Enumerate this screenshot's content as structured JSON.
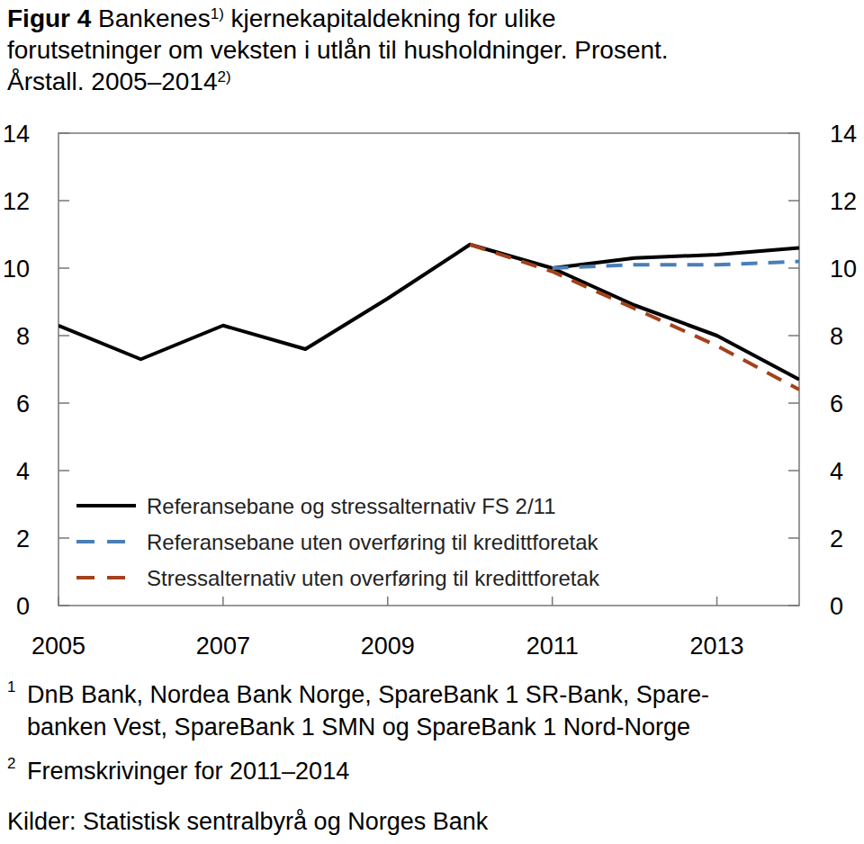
{
  "chart_data": {
    "type": "line",
    "title": [
      "Figur 4",
      " Bankenes",
      "1)",
      " kjernekapitaldekning for ulike",
      "forutsetninger om veksten i utlån til husholdninger. Prosent.",
      "Årstall. 2005–2014",
      "2)"
    ],
    "x": [
      2005,
      2006,
      2007,
      2008,
      2009,
      2010,
      2011,
      2012,
      2013,
      2014
    ],
    "xlim": [
      2005,
      2014
    ],
    "xticks": [
      2005,
      2007,
      2009,
      2011,
      2013
    ],
    "ylim": [
      0,
      14
    ],
    "yticks": [
      0,
      2,
      4,
      6,
      8,
      10,
      12,
      14
    ],
    "y2lim": [
      0,
      14
    ],
    "y2ticks": [
      0,
      2,
      4,
      6,
      8,
      10,
      12,
      14
    ],
    "grid": false,
    "legend": "lower left",
    "series": [
      {
        "name": "Referansebane og stressalternativ FS 2/11",
        "color": "#000000",
        "line_style": "solid",
        "values": [
          8.3,
          7.3,
          8.3,
          7.6,
          9.1,
          10.7,
          10.0,
          8.9,
          8.0,
          6.7
        ]
      },
      {
        "name": null,
        "color": "#000000",
        "line_style": "solid",
        "values": [
          null,
          null,
          null,
          null,
          null,
          null,
          10.0,
          10.3,
          10.4,
          10.6
        ]
      },
      {
        "name": "Referansebane uten overføring til kredittforetak",
        "color": "#4a7fb5",
        "line_style": "dashed",
        "values": [
          null,
          null,
          null,
          null,
          null,
          null,
          10.0,
          10.1,
          10.1,
          10.2
        ]
      },
      {
        "name": "Stressalternativ uten overføring til kredittforetak",
        "color": "#a3421c",
        "line_style": "dashed",
        "values": [
          null,
          null,
          null,
          null,
          null,
          10.7,
          9.9,
          8.8,
          7.7,
          6.4
        ]
      }
    ],
    "notes": [
      {
        "mark": "1",
        "lines": [
          "DnB Bank, Nordea Bank Norge, SpareBank 1 SR-Bank, Spare-",
          "banken Vest, SpareBank 1 SMN og SpareBank 1 Nord-Norge"
        ]
      },
      {
        "mark": "2",
        "lines": [
          "Fremskrivinger for 2011–2014"
        ]
      }
    ],
    "source": "Kilder: Statistisk sentralbyrå og Norges Bank"
  }
}
